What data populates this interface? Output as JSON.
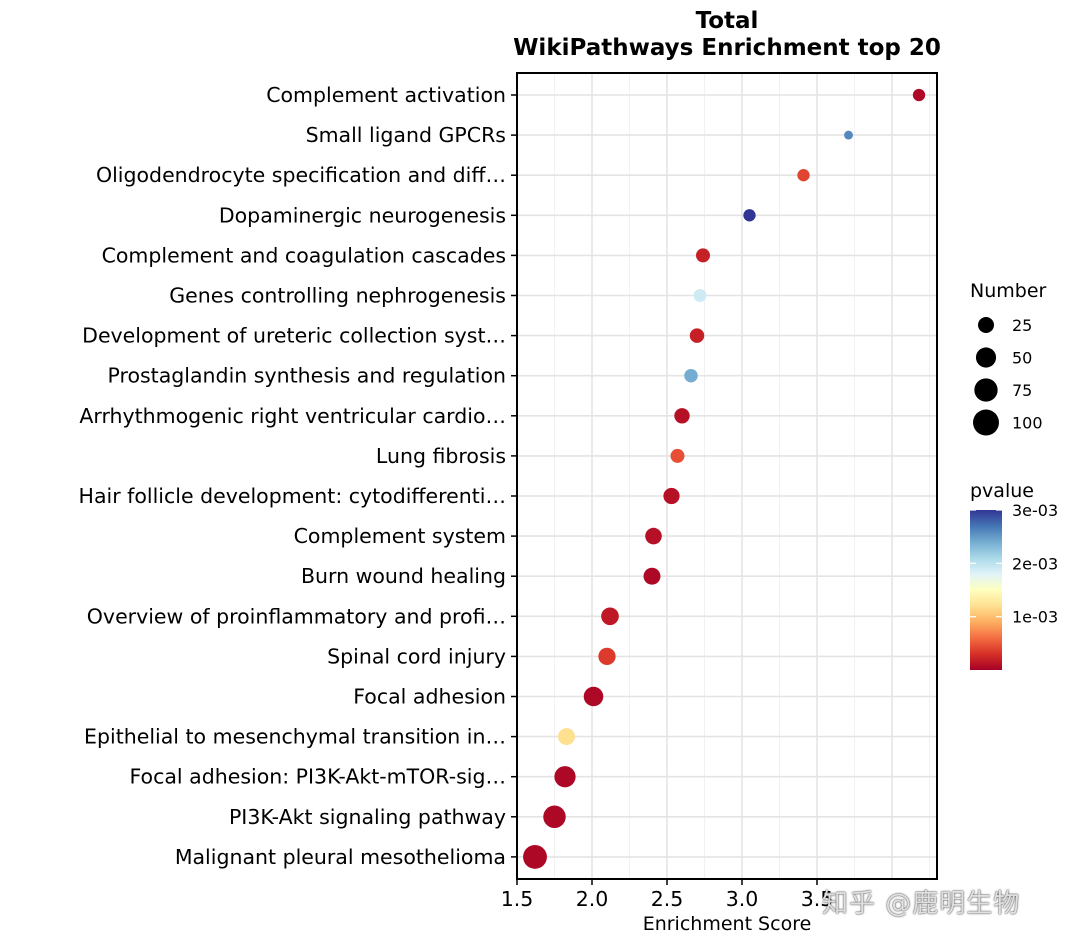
{
  "chart_data": {
    "type": "scatter",
    "title": "Total",
    "subtitle": "WikiPathways Enrichment top 20",
    "xlabel": "Enrichment Score",
    "ylabel": "",
    "xlim": [
      1.5,
      4.3
    ],
    "xticks": [
      1.5,
      2.0,
      2.5,
      3.0,
      3.5
    ],
    "xtick_labels": [
      "1.5",
      "2.0",
      "2.5",
      "3.0",
      "3.5"
    ],
    "grid": true,
    "categories": [
      "Complement activation",
      "Small ligand GPCRs",
      "Oligodendrocyte specification and diff…",
      "Dopaminergic neurogenesis",
      "Complement and coagulation cascades",
      "Genes controlling nephrogenesis",
      "Development of ureteric collection syst…",
      "Prostaglandin synthesis and regulation",
      "Arrhythmogenic right ventricular cardio…",
      "Lung fibrosis",
      "Hair follicle development: cytodifferenti…",
      "Complement system",
      "Burn wound healing",
      "Overview of proinflammatory and profi…",
      "Spinal cord injury",
      "Focal adhesion",
      "Epithelial to mesenchymal transition in…",
      "Focal adhesion: PI3K-Akt-mTOR-sig…",
      "PI3K-Akt signaling pathway",
      "Malignant pleural mesothelioma"
    ],
    "x": [
      4.18,
      3.71,
      3.41,
      3.05,
      2.74,
      2.72,
      2.7,
      2.66,
      2.6,
      2.57,
      2.53,
      2.41,
      2.4,
      2.12,
      2.1,
      2.01,
      1.83,
      1.82,
      1.75,
      1.62
    ],
    "number": [
      10,
      2,
      10,
      10,
      16,
      12,
      18,
      14,
      22,
      16,
      26,
      28,
      30,
      34,
      32,
      46,
      30,
      58,
      68,
      80
    ],
    "pvalue": [
      5e-05,
      0.0026,
      0.0004,
      0.003,
      0.0002,
      0.0019,
      0.0002,
      0.0024,
      0.0001,
      0.00045,
      0.0001,
      0.0001,
      5e-05,
      0.00015,
      0.00035,
      5e-05,
      0.0012,
      5e-05,
      5e-05,
      5e-05
    ],
    "size_legend": {
      "title": "Number",
      "values": [
        25,
        50,
        75,
        100
      ],
      "labels": [
        "25",
        "50",
        "75",
        "100"
      ]
    },
    "color_legend": {
      "title": "pvalue",
      "min": 0,
      "max": 0.003,
      "tick_values": [
        0.003,
        0.002,
        0.001
      ],
      "tick_labels": [
        "3e-03",
        "2e-03",
        "1e-03"
      ],
      "colormap": [
        "#a50026",
        "#d73027",
        "#f46d43",
        "#fdae61",
        "#fee090",
        "#ffffbf",
        "#e0f3f8",
        "#abd9e9",
        "#74add1",
        "#4575b4",
        "#313695"
      ]
    },
    "legend_position": "right"
  },
  "watermark": "知乎 @鹿明生物"
}
